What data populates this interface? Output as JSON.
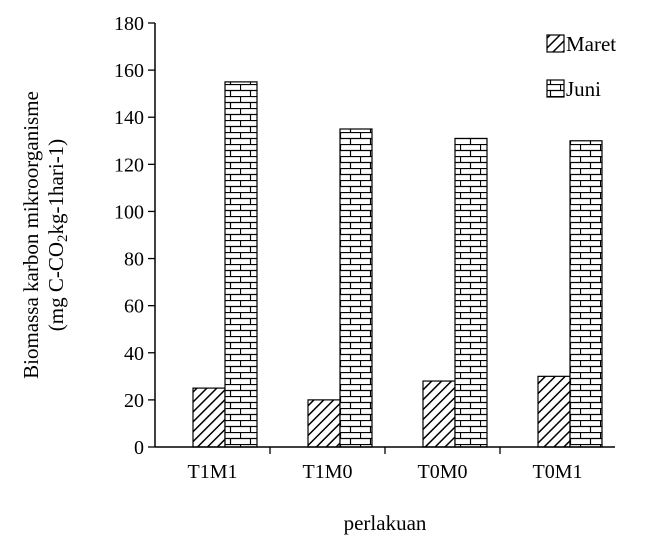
{
  "chart_data": {
    "type": "bar",
    "categories": [
      "T1M1",
      "T1M0",
      "T0M0",
      "T0M1"
    ],
    "series": [
      {
        "name": "Maret",
        "values": [
          25,
          20,
          28,
          30
        ],
        "pattern": "diagonal-hatch"
      },
      {
        "name": "Juni",
        "values": [
          155,
          135,
          131,
          130
        ],
        "pattern": "brick"
      }
    ],
    "xlabel": "perlakuan",
    "ylabel_line1": "Biomassa karbon mikroorganisme",
    "ylabel_line2_pre": "(mg C-CO",
    "ylabel_line2_sub": "2",
    "ylabel_line2_post": "kg-1hari-1)",
    "ylim": [
      0,
      180
    ],
    "yticks": [
      "0",
      "20",
      "40",
      "60",
      "80",
      "100",
      "120",
      "140",
      "160",
      "180"
    ],
    "grid": false,
    "legend_position": "top-right",
    "colors": {
      "axis": "#000000",
      "bar_stroke": "#000000",
      "fill": "#ffffff"
    }
  }
}
